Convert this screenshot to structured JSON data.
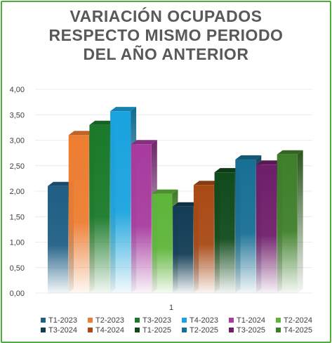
{
  "chart_data": {
    "type": "bar",
    "title_lines": [
      "VARIACIÓN OCUPADOS",
      "RESPECTO MISMO PERIODO",
      "DEL AÑO ANTERIOR"
    ],
    "categories": [
      "1"
    ],
    "ylim": [
      0,
      4
    ],
    "yticks": [
      "0,00",
      "0,50",
      "1,00",
      "1,50",
      "2,00",
      "2,50",
      "3,00",
      "3,50",
      "4,00"
    ],
    "grid": true,
    "legend_position": "bottom",
    "series": [
      {
        "name": "T1-2023",
        "value": 2.1,
        "color": "#1f5f85"
      },
      {
        "name": "T2-2023",
        "value": 3.1,
        "color": "#ed7d31"
      },
      {
        "name": "T3-2023",
        "value": 3.3,
        "color": "#1a7a2a"
      },
      {
        "name": "T4-2023",
        "value": 3.57,
        "color": "#1aa3de"
      },
      {
        "name": "T1-2024",
        "value": 2.92,
        "color": "#a73b9e"
      },
      {
        "name": "T2-2024",
        "value": 1.95,
        "color": "#5db53a"
      },
      {
        "name": "T3-2024",
        "value": 1.7,
        "color": "#123d55"
      },
      {
        "name": "T4-2024",
        "value": 2.12,
        "color": "#a84a15"
      },
      {
        "name": "T1-2025",
        "value": 2.37,
        "color": "#114a1c"
      },
      {
        "name": "T2-2025",
        "value": 2.62,
        "color": "#186f95"
      },
      {
        "name": "T3-2025",
        "value": 2.52,
        "color": "#6f1f6a"
      },
      {
        "name": "T4-2025",
        "value": 2.72,
        "color": "#3e7f2a"
      }
    ]
  }
}
